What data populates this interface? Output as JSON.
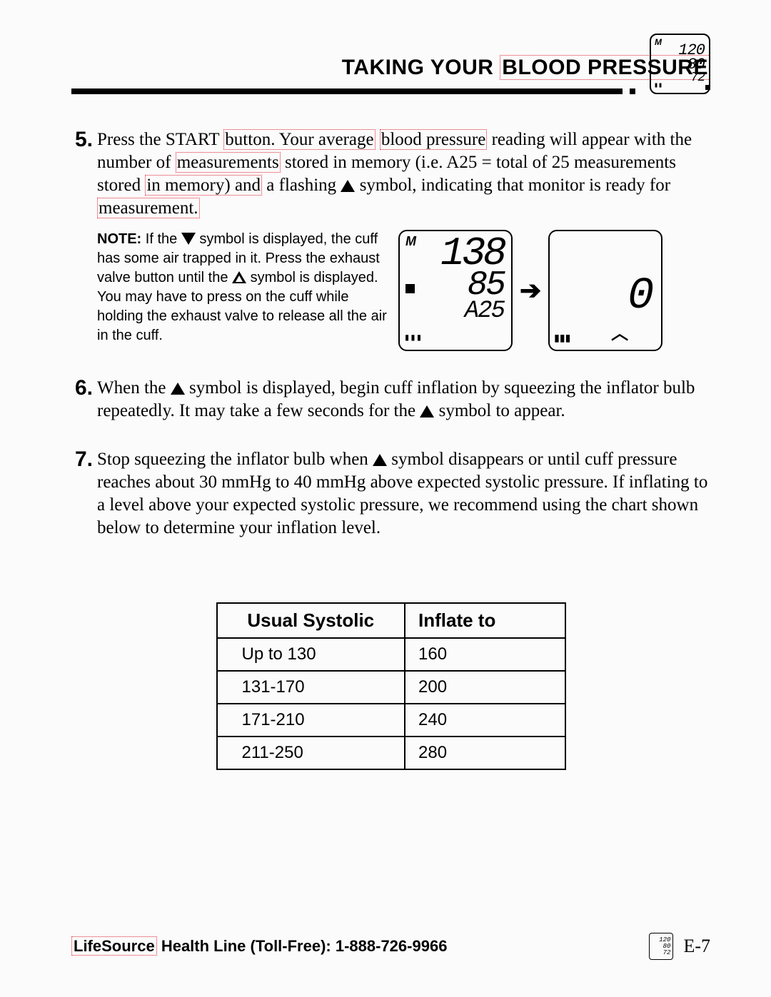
{
  "header": {
    "title_pre": "TAKING YOUR ",
    "title_spell": "BLOOD PRESSURE",
    "device": {
      "sys": "120",
      "dia": "80",
      "pulse": "72"
    }
  },
  "step5": {
    "num": "5.",
    "t1": "Press the START ",
    "sp1": "button. Your average",
    "t2": " ",
    "sp2": "blood pressure",
    "t3": " reading will appear with the number of ",
    "sp3": "measurements",
    "t4": " stored in memory (i.e. A25 = total of 25 measurements stored ",
    "sp4": "in memory) and",
    "t5": " a flashing ",
    "t6": " symbol, indicating that monitor is ready for ",
    "sp5": "measurement.",
    "note_label": "NOTE:",
    "note_a": " If the ",
    "note_b": " symbol is displayed, the cuff has some air trapped in it. Press the exhaust valve button until the ",
    "note_c": " symbol is displayed. You may have to press on the cuff while holding the exhaust valve to release all the air in the cuff.",
    "lcd1": {
      "sys": "138",
      "dia": "85",
      "mem": "A25"
    },
    "lcd2": {
      "zero": "0"
    }
  },
  "step6": {
    "num": "6.",
    "a": "When the ",
    "b": " symbol is displayed, begin cuff inflation by squeezing the inflator bulb repeatedly. It may take a few seconds for the ",
    "c": " symbol to appear."
  },
  "step7": {
    "num": "7.",
    "a": "Stop squeezing the inflator bulb when ",
    "b": " symbol disappears or until cuff pressure reaches about 30 mmHg to 40 mmHg above expected systolic pressure. If inflating to a level above your expected systolic pressure, we recommend using the chart shown below to determine your inflation level."
  },
  "table": {
    "h1": "Usual Systolic",
    "h2": "Inflate to",
    "rows": [
      {
        "a": "Up to 130",
        "b": "160"
      },
      {
        "a": "131-170",
        "b": "200"
      },
      {
        "a": "171-210",
        "b": "240"
      },
      {
        "a": "211-250",
        "b": "280"
      }
    ]
  },
  "footer": {
    "brand": "LifeSource",
    "rest": " Health Line (Toll-Free): 1-888-726-9966",
    "page": "E-7",
    "mini": {
      "a": "120",
      "b": "80",
      "c": "72"
    }
  },
  "colors": {
    "spell_border": "#dd2233",
    "page_bg": "#fbfbfb",
    "text": "#000000"
  }
}
